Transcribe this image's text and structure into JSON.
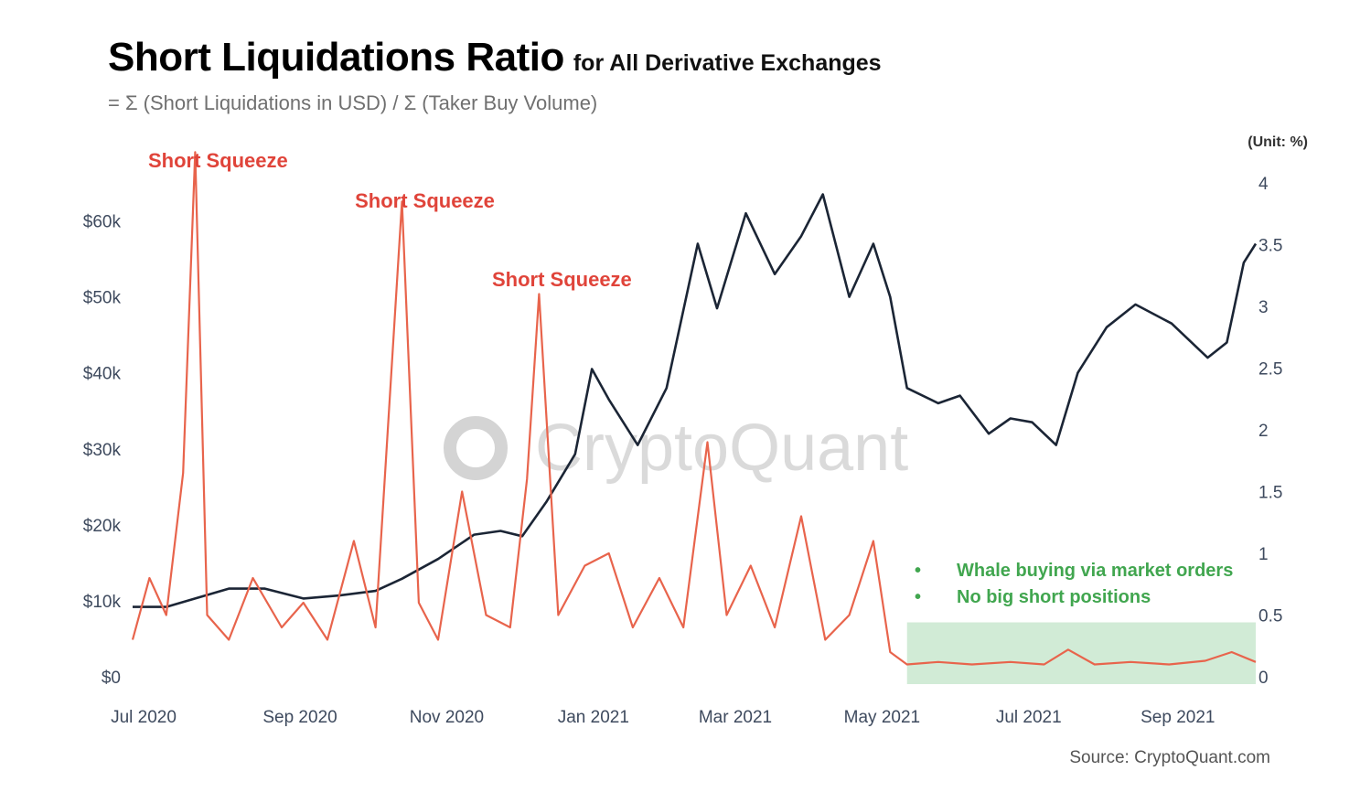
{
  "title": "Short Liquidations Ratio",
  "subtitle": "for All Derivative Exchanges",
  "formula": "= Σ (Short Liquidations in USD) / Σ (Taker Buy Volume)",
  "source": "Source: CryptoQuant.com",
  "watermark": "CryptoQuant",
  "unit_label": "(Unit: %)",
  "colors": {
    "price": "#1b2535",
    "ratio": "#e8644c",
    "annotation": "#e0443a",
    "highlight": "#c9e8cf",
    "note": "#41a64f"
  },
  "chart_data": {
    "type": "line",
    "x_ticks": [
      "Jul 2020",
      "Sep 2020",
      "Nov 2020",
      "Jan 2021",
      "Mar 2021",
      "May 2021",
      "Jul 2021",
      "Sep 2021"
    ],
    "y_left_ticks": [
      "$0",
      "$10k",
      "$20k",
      "$30k",
      "$40k",
      "$50k",
      "$60k"
    ],
    "y_left_range": [
      0,
      65000
    ],
    "y_right_ticks": [
      "0",
      "0.5",
      "1",
      "1.5",
      "2",
      "2.5",
      "3",
      "3.5",
      "4"
    ],
    "y_right_range": [
      0,
      4.0
    ],
    "annotations": [
      {
        "text": "Short Squeeze",
        "date": "2020-07-27"
      },
      {
        "text": "Short Squeeze",
        "date": "2020-10-21"
      },
      {
        "text": "Short Squeeze",
        "date": "2020-12-17"
      }
    ],
    "highlight_region": {
      "from": "2021-05-19",
      "to": "2021-10-11"
    },
    "notes": [
      "Whale buying via market orders",
      "No big short positions"
    ],
    "series": [
      {
        "axis": "left",
        "x": [
          "2020-07-01",
          "2020-07-15",
          "2020-07-27",
          "2020-08-10",
          "2020-08-25",
          "2020-09-10",
          "2020-09-25",
          "2020-10-10",
          "2020-10-21",
          "2020-11-05",
          "2020-11-20",
          "2020-12-01",
          "2020-12-10",
          "2020-12-20",
          "2021-01-01",
          "2021-01-08",
          "2021-01-15",
          "2021-01-27",
          "2021-02-08",
          "2021-02-21",
          "2021-03-01",
          "2021-03-13",
          "2021-03-25",
          "2021-04-05",
          "2021-04-14",
          "2021-04-25",
          "2021-05-05",
          "2021-05-12",
          "2021-05-19",
          "2021-06-01",
          "2021-06-10",
          "2021-06-22",
          "2021-07-01",
          "2021-07-10",
          "2021-07-20",
          "2021-07-29",
          "2021-08-10",
          "2021-08-22",
          "2021-09-06",
          "2021-09-21",
          "2021-09-29",
          "2021-10-06",
          "2021-10-11"
        ],
        "values": [
          9200,
          9200,
          10300,
          11600,
          11600,
          10300,
          10700,
          11300,
          12900,
          15500,
          18700,
          19200,
          18500,
          23000,
          29300,
          40500,
          36500,
          30500,
          38000,
          57000,
          48500,
          61000,
          53000,
          58000,
          63500,
          50000,
          57000,
          50000,
          38000,
          36000,
          37000,
          32000,
          34000,
          33500,
          30500,
          40000,
          46000,
          49000,
          46500,
          42000,
          44000,
          54500,
          57000
        ]
      },
      {
        "axis": "right",
        "x": [
          "2020-07-01",
          "2020-07-08",
          "2020-07-15",
          "2020-07-22",
          "2020-07-27",
          "2020-08-01",
          "2020-08-10",
          "2020-08-20",
          "2020-09-01",
          "2020-09-10",
          "2020-09-20",
          "2020-10-01",
          "2020-10-10",
          "2020-10-21",
          "2020-10-28",
          "2020-11-05",
          "2020-11-15",
          "2020-11-25",
          "2020-12-05",
          "2020-12-12",
          "2020-12-17",
          "2020-12-25",
          "2021-01-05",
          "2021-01-15",
          "2021-01-25",
          "2021-02-05",
          "2021-02-15",
          "2021-02-25",
          "2021-03-05",
          "2021-03-15",
          "2021-03-25",
          "2021-04-05",
          "2021-04-15",
          "2021-04-25",
          "2021-05-05",
          "2021-05-12",
          "2021-05-19",
          "2021-06-01",
          "2021-06-15",
          "2021-07-01",
          "2021-07-15",
          "2021-07-25",
          "2021-08-05",
          "2021-08-20",
          "2021-09-05",
          "2021-09-20",
          "2021-10-01",
          "2021-10-11"
        ],
        "values": [
          0.3,
          0.8,
          0.5,
          1.65,
          4.25,
          0.5,
          0.3,
          0.8,
          0.4,
          0.6,
          0.3,
          1.1,
          0.4,
          3.85,
          0.6,
          0.3,
          1.5,
          0.5,
          0.4,
          1.6,
          3.1,
          0.5,
          0.9,
          1.0,
          0.4,
          0.8,
          0.4,
          1.9,
          0.5,
          0.9,
          0.4,
          1.3,
          0.3,
          0.5,
          1.1,
          0.2,
          0.1,
          0.12,
          0.1,
          0.12,
          0.1,
          0.22,
          0.1,
          0.12,
          0.1,
          0.13,
          0.2,
          0.12
        ]
      }
    ]
  }
}
